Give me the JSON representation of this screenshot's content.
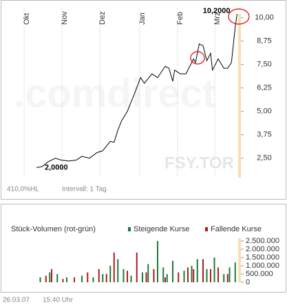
{
  "chart_data": [
    {
      "type": "line",
      "watermark": ".comdirect",
      "symbol": "FSY.TOR",
      "range_text": "410,0%HL",
      "interval_text": "Intervall: 1 Tag",
      "high_label": "10,2000",
      "low_label": "2,0000",
      "x": [
        12,
        15,
        18,
        22,
        25,
        29,
        33,
        36,
        40,
        44,
        47,
        51,
        53,
        55,
        57,
        60,
        62,
        64,
        67,
        69,
        73,
        76,
        80,
        82,
        84,
        85,
        88,
        91,
        95,
        96,
        98,
        100,
        102,
        104,
        105,
        108,
        111,
        113,
        115,
        117,
        118
      ],
      "series": [
        {
          "color": "#000000",
          "values": [
            2.0,
            2.05,
            2.3,
            2.5,
            2.4,
            2.35,
            2.4,
            2.6,
            2.5,
            2.8,
            2.9,
            3.4,
            3.35,
            4.0,
            4.5,
            5.0,
            5.5,
            6.0,
            6.8,
            6.5,
            7.0,
            6.8,
            7.4,
            7.3,
            6.6,
            7.2,
            7.0,
            7.0,
            7.8,
            7.6,
            8.6,
            8.5,
            7.7,
            8.1,
            7.2,
            7.8,
            7.3,
            7.3,
            7.6,
            9.5,
            10.2
          ]
        }
      ],
      "xlim": [
        0,
        120
      ],
      "xticks": [
        {
          "value": 5.5,
          "label": "Okt"
        },
        {
          "value": 25.5,
          "label": "Nov"
        },
        {
          "value": 45.5,
          "label": "Dez"
        },
        {
          "value": 66.5,
          "label": "Jan"
        },
        {
          "value": 86.5,
          "label": "Feb"
        },
        {
          "value": 106.2,
          "label": "Mrz"
        }
      ],
      "ylim": [
        1.5,
        10.5
      ],
      "yticks": [
        {
          "value": 2.5,
          "label": "2,50"
        },
        {
          "value": 3.75,
          "label": "3,75"
        },
        {
          "value": 5,
          "label": "5,00"
        },
        {
          "value": 6.25,
          "label": "6,25"
        },
        {
          "value": 7.5,
          "label": "7,50"
        },
        {
          "value": 8.75,
          "label": "8,75"
        },
        {
          "value": 10,
          "label": "10,00"
        }
      ],
      "grid": true
    },
    {
      "type": "bar",
      "title": "Stück-Volumen (rot-grün)",
      "series": [
        {
          "name": "Steigende Kurse",
          "color": "#1a7a3a",
          "x": [
            14,
            19,
            23,
            28,
            36,
            42,
            47,
            51,
            55,
            58,
            62,
            68,
            71,
            76,
            79,
            81,
            84,
            90,
            94,
            97,
            102,
            106,
            111,
            114,
            117
          ],
          "values": [
            300000,
            600000,
            500000,
            300000,
            400000,
            300000,
            500000,
            1000000,
            1400000,
            800000,
            400000,
            600000,
            1100000,
            2500000,
            900000,
            500000,
            1300000,
            700000,
            1000000,
            1400000,
            800000,
            1500000,
            500000,
            900000,
            1200000
          ]
        },
        {
          "name": "Fallende Kurse",
          "color": "#b01a1a",
          "x": [
            17,
            20,
            26,
            32,
            39,
            45,
            49,
            53,
            60,
            65,
            70,
            74,
            80,
            87,
            92,
            95,
            100,
            104,
            108,
            113
          ],
          "values": [
            400000,
            800000,
            200000,
            300000,
            600000,
            800000,
            500000,
            1800000,
            700000,
            1800000,
            600000,
            800000,
            300000,
            600000,
            900000,
            800000,
            1400000,
            800000,
            900000,
            500000
          ]
        }
      ],
      "xlim": [
        0,
        120
      ],
      "ylim": [
        0,
        2750000
      ],
      "yticks": [
        0,
        {
          "value": 500000,
          "label": "500.000"
        },
        {
          "value": 1000000,
          "label": "1.000.000"
        },
        {
          "value": 1500000,
          "label": "1.500.000"
        },
        {
          "value": 2000000,
          "label": "2.000.000"
        },
        {
          "value": 2500000,
          "label": "2.500.000"
        }
      ]
    }
  ],
  "footer": {
    "date": "26.03.07",
    "time": "15:40 Uhr"
  }
}
